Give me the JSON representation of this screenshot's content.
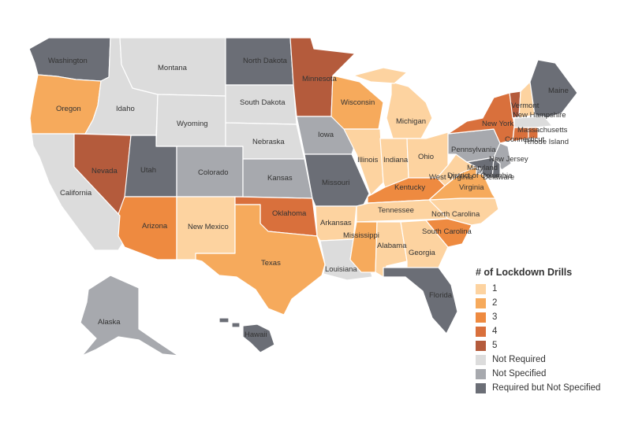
{
  "colors": {
    "1": "#fdd3a0",
    "2": "#f6aa5c",
    "3": "#ee8a40",
    "4": "#d9703c",
    "5": "#b45b3c",
    "not_required": "#dcdcdc",
    "not_specified": "#a7a9ae",
    "required_not_specified": "#6b6e76"
  },
  "legend": {
    "title": "# of Lockdown Drills",
    "items": [
      {
        "key": "1",
        "label": "1"
      },
      {
        "key": "2",
        "label": "2"
      },
      {
        "key": "3",
        "label": "3"
      },
      {
        "key": "4",
        "label": "4"
      },
      {
        "key": "5",
        "label": "5"
      },
      {
        "key": "not_required",
        "label": "Not Required"
      },
      {
        "key": "not_specified",
        "label": "Not Specified"
      },
      {
        "key": "required_not_specified",
        "label": "Required but Not Specified"
      }
    ]
  },
  "states": {
    "washington": {
      "label": "Washington",
      "category": "required_not_specified"
    },
    "oregon": {
      "label": "Oregon",
      "category": "2"
    },
    "california": {
      "label": "California",
      "category": "not_required"
    },
    "idaho": {
      "label": "Idaho",
      "category": "not_required"
    },
    "nevada": {
      "label": "Nevada",
      "category": "5"
    },
    "montana": {
      "label": "Montana",
      "category": "not_required"
    },
    "wyoming": {
      "label": "Wyoming",
      "category": "not_required"
    },
    "utah": {
      "label": "Utah",
      "category": "required_not_specified"
    },
    "arizona": {
      "label": "Arizona",
      "category": "3"
    },
    "colorado": {
      "label": "Colorado",
      "category": "not_specified"
    },
    "new_mexico": {
      "label": "New Mexico",
      "category": "1"
    },
    "north_dakota": {
      "label": "North Dakota",
      "category": "required_not_specified"
    },
    "south_dakota": {
      "label": "South Dakota",
      "category": "not_required"
    },
    "nebraska": {
      "label": "Nebraska",
      "category": "not_required"
    },
    "kansas": {
      "label": "Kansas",
      "category": "not_specified"
    },
    "oklahoma": {
      "label": "Oklahoma",
      "category": "4"
    },
    "texas": {
      "label": "Texas",
      "category": "2"
    },
    "minnesota": {
      "label": "Minnesota",
      "category": "5"
    },
    "iowa": {
      "label": "Iowa",
      "category": "not_specified"
    },
    "missouri": {
      "label": "Missouri",
      "category": "required_not_specified"
    },
    "arkansas": {
      "label": "Arkansas",
      "category": "1"
    },
    "louisiana": {
      "label": "Louisiana",
      "category": "not_required"
    },
    "wisconsin": {
      "label": "Wisconsin",
      "category": "2"
    },
    "illinois": {
      "label": "Illinois",
      "category": "1"
    },
    "michigan": {
      "label": "Michigan",
      "category": "1"
    },
    "indiana": {
      "label": "Indiana",
      "category": "1"
    },
    "ohio": {
      "label": "Ohio",
      "category": "1"
    },
    "kentucky": {
      "label": "Kentucky",
      "category": "3"
    },
    "tennessee": {
      "label": "Tennessee",
      "category": "1"
    },
    "mississippi": {
      "label": "Mississippi",
      "category": "2"
    },
    "alabama": {
      "label": "Alabama",
      "category": "1"
    },
    "georgia": {
      "label": "Georgia",
      "category": "1"
    },
    "florida": {
      "label": "Florida",
      "category": "required_not_specified"
    },
    "south_carolina": {
      "label": "South Carolina",
      "category": "3"
    },
    "north_carolina": {
      "label": "North Carolina",
      "category": "1"
    },
    "virginia": {
      "label": "Virginia",
      "category": "2"
    },
    "west_virginia": {
      "label": "West Virginia",
      "category": "1"
    },
    "pennsylvania": {
      "label": "Pennsylvania",
      "category": "not_specified"
    },
    "new_york": {
      "label": "New York",
      "category": "4"
    },
    "vermont": {
      "label": "Vermont",
      "category": "5"
    },
    "new_hampshire": {
      "label": "New Hampshire",
      "category": "1"
    },
    "maine": {
      "label": "Maine",
      "category": "required_not_specified"
    },
    "massachusetts": {
      "label": "Massachusetts",
      "category": "not_required"
    },
    "rhode_island": {
      "label": "Rhode Island",
      "category": "4"
    },
    "connecticut": {
      "label": "Connecticut",
      "category": "4"
    },
    "new_jersey": {
      "label": "New Jersey",
      "category": "not_specified"
    },
    "delaware": {
      "label": "Delaware",
      "category": "required_not_specified"
    },
    "maryland": {
      "label": "Maryland",
      "category": "required_not_specified"
    },
    "district_of_columbia": {
      "label": "District of Columbia",
      "category": "not_specified"
    },
    "alaska": {
      "label": "Alaska",
      "category": "not_specified"
    },
    "hawaii": {
      "label": "Hawaii",
      "category": "required_not_specified"
    }
  }
}
